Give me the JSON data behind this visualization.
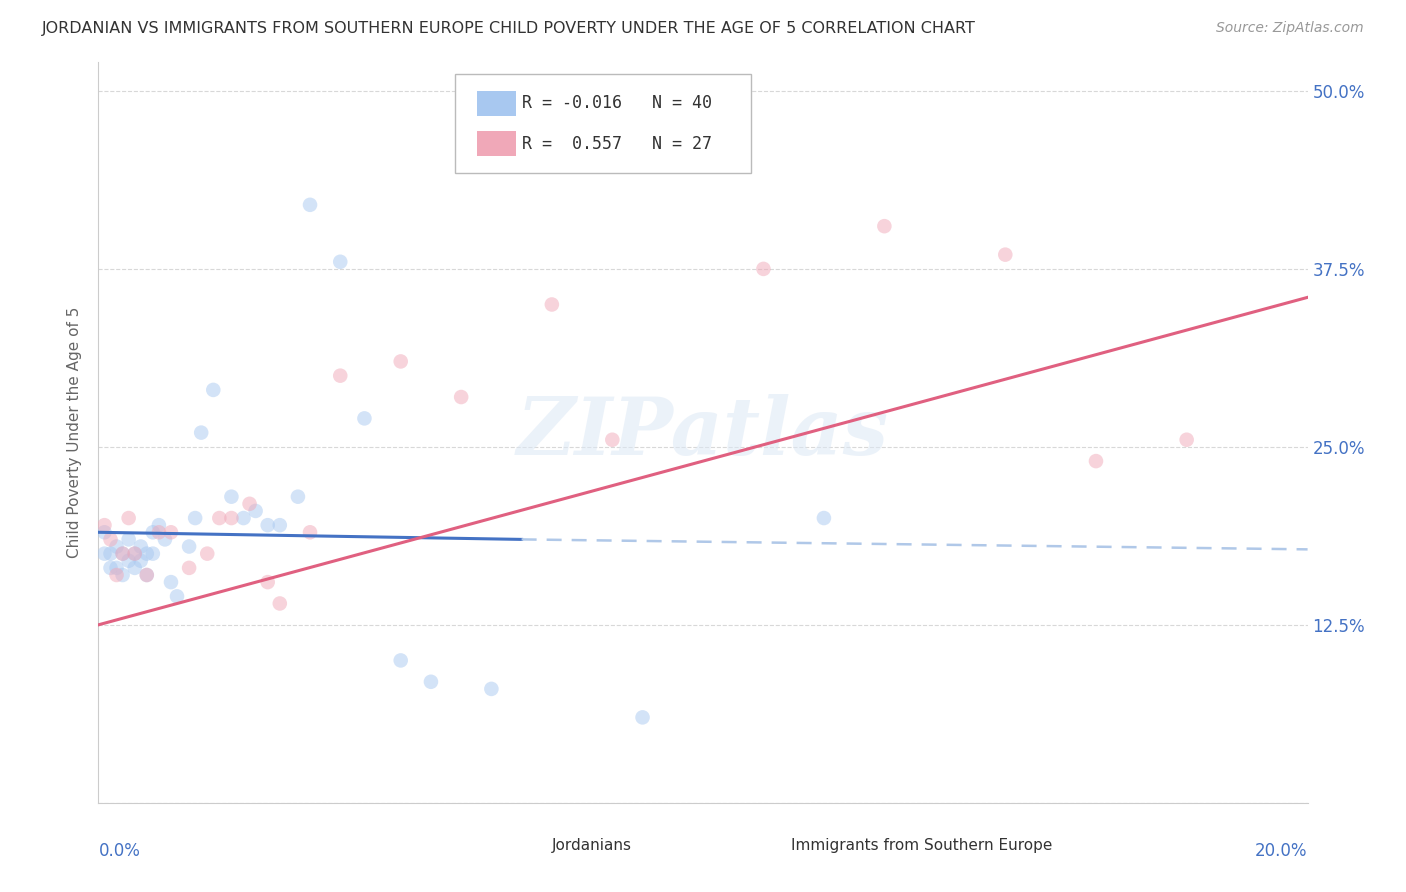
{
  "title": "JORDANIAN VS IMMIGRANTS FROM SOUTHERN EUROPE CHILD POVERTY UNDER THE AGE OF 5 CORRELATION CHART",
  "source": "Source: ZipAtlas.com",
  "ylabel": "Child Poverty Under the Age of 5",
  "jordanians": {
    "color": "#a8c8f0",
    "line_color": "#4472c4",
    "dash_color": "#b0c8e8",
    "x": [
      0.001,
      0.001,
      0.002,
      0.002,
      0.003,
      0.003,
      0.004,
      0.004,
      0.005,
      0.005,
      0.006,
      0.006,
      0.007,
      0.007,
      0.008,
      0.008,
      0.009,
      0.009,
      0.01,
      0.011,
      0.012,
      0.013,
      0.015,
      0.016,
      0.017,
      0.019,
      0.022,
      0.024,
      0.026,
      0.028,
      0.03,
      0.033,
      0.035,
      0.04,
      0.044,
      0.05,
      0.055,
      0.065,
      0.09,
      0.12
    ],
    "y": [
      0.175,
      0.19,
      0.175,
      0.165,
      0.18,
      0.165,
      0.175,
      0.16,
      0.185,
      0.17,
      0.175,
      0.165,
      0.18,
      0.17,
      0.175,
      0.16,
      0.19,
      0.175,
      0.195,
      0.185,
      0.155,
      0.145,
      0.18,
      0.2,
      0.26,
      0.29,
      0.215,
      0.2,
      0.205,
      0.195,
      0.195,
      0.215,
      0.42,
      0.38,
      0.27,
      0.1,
      0.085,
      0.08,
      0.06,
      0.2
    ],
    "solid_trend_x": [
      0.0,
      0.07
    ],
    "solid_trend_y": [
      0.19,
      0.185
    ],
    "dash_trend_x": [
      0.07,
      0.2
    ],
    "dash_trend_y": [
      0.185,
      0.178
    ]
  },
  "immigrants": {
    "color": "#f0a8b8",
    "line_color": "#e06080",
    "x": [
      0.001,
      0.002,
      0.003,
      0.004,
      0.005,
      0.006,
      0.008,
      0.01,
      0.012,
      0.015,
      0.018,
      0.02,
      0.022,
      0.025,
      0.028,
      0.03,
      0.035,
      0.04,
      0.05,
      0.06,
      0.075,
      0.085,
      0.11,
      0.13,
      0.15,
      0.165,
      0.18
    ],
    "y": [
      0.195,
      0.185,
      0.16,
      0.175,
      0.2,
      0.175,
      0.16,
      0.19,
      0.19,
      0.165,
      0.175,
      0.2,
      0.2,
      0.21,
      0.155,
      0.14,
      0.19,
      0.3,
      0.31,
      0.285,
      0.35,
      0.255,
      0.375,
      0.405,
      0.385,
      0.24,
      0.255
    ],
    "trend_x": [
      0.0,
      0.2
    ],
    "trend_y": [
      0.125,
      0.355
    ]
  },
  "background_color": "#ffffff",
  "grid_color": "#d8d8d8",
  "scatter_size": 110,
  "scatter_alpha": 0.5,
  "xmin": 0.0,
  "xmax": 0.2,
  "ymin": 0.0,
  "ymax": 0.52,
  "yticks": [
    0.0,
    0.125,
    0.25,
    0.375,
    0.5
  ],
  "ytick_labels": [
    "",
    "12.5%",
    "25.0%",
    "37.5%",
    "50.0%"
  ]
}
